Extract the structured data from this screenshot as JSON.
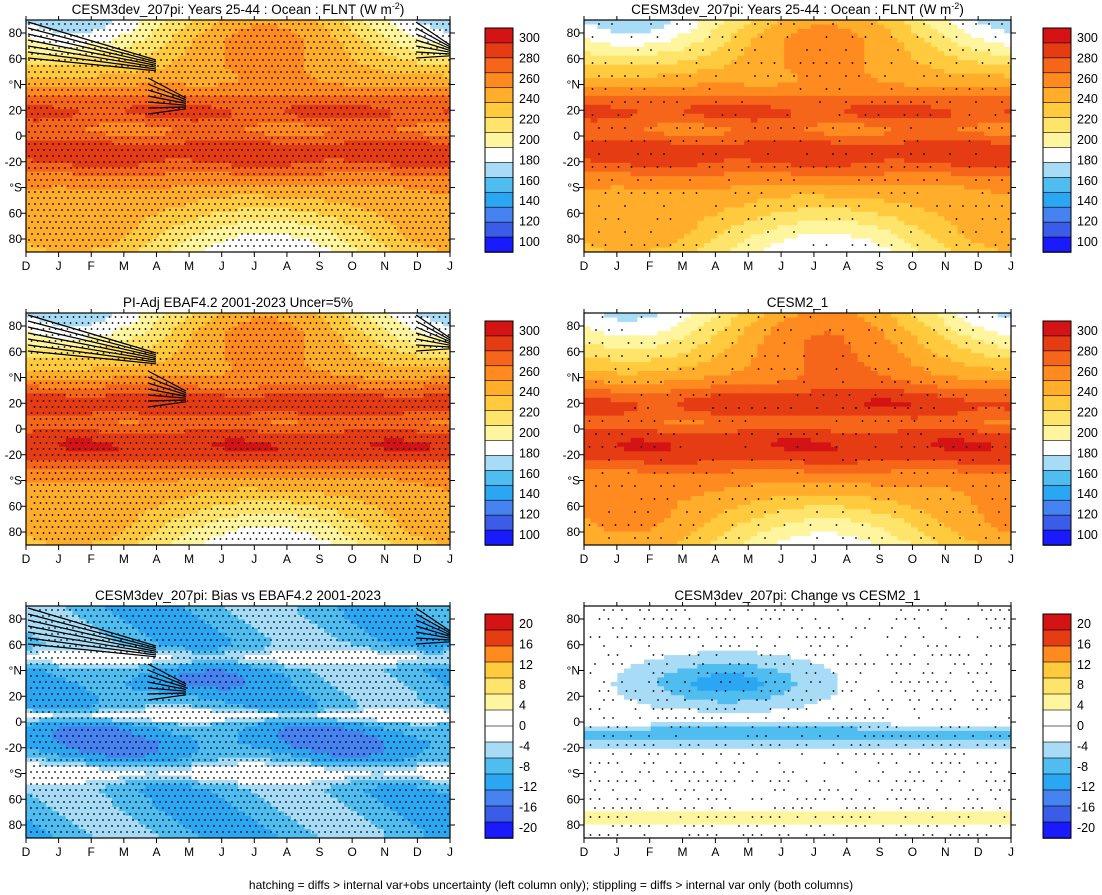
{
  "footnote": "hatching = diffs > internal var+obs uncertainty (left column only); stippling = diffs > internal var only (both columns)",
  "month_ticks": [
    "D",
    "J",
    "F",
    "M",
    "A",
    "M",
    "J",
    "J",
    "A",
    "S",
    "O",
    "N",
    "D",
    "J"
  ],
  "lat_ticks": [
    "80",
    "60",
    "°N",
    "20",
    "0",
    "-20",
    "°S",
    "60",
    "80"
  ],
  "chart_data": [
    {
      "type": "heatmap",
      "title": "CESM3dev_207pi: Years 25-44 : Ocean : FLNT (W m",
      "title_superscript": "-2",
      "title_suffix": ")",
      "field": "flnt_model",
      "hatch": "left",
      "stipple": "dense",
      "colorbar": {
        "levels": [
          100,
          120,
          140,
          160,
          180,
          200,
          220,
          240,
          260,
          280,
          300
        ],
        "labels": [
          "300",
          "280",
          "260",
          "240",
          "220",
          "200",
          "180",
          "160",
          "140",
          "120",
          "100"
        ],
        "range": [
          90,
          310
        ]
      }
    },
    {
      "type": "heatmap",
      "title": "CESM3dev_207pi: Years 25-44 : Ocean : FLNT (W m",
      "title_superscript": "-2",
      "title_suffix": ")",
      "field": "flnt_model",
      "hatch": "none",
      "stipple": "sparse",
      "colorbar": {
        "levels": [
          100,
          120,
          140,
          160,
          180,
          200,
          220,
          240,
          260,
          280,
          300
        ],
        "labels": [
          "300",
          "280",
          "260",
          "240",
          "220",
          "200",
          "180",
          "160",
          "140",
          "120",
          "100"
        ],
        "range": [
          90,
          310
        ]
      }
    },
    {
      "type": "heatmap",
      "title": "PI-Adj EBAF4.2 2001-2023 Uncer=5%",
      "title_superscript": "",
      "title_suffix": "",
      "field": "flnt_obs",
      "hatch": "left",
      "stipple": "dense",
      "colorbar": {
        "levels": [
          100,
          120,
          140,
          160,
          180,
          200,
          220,
          240,
          260,
          280,
          300
        ],
        "labels": [
          "300",
          "280",
          "260",
          "240",
          "220",
          "200",
          "180",
          "160",
          "140",
          "120",
          "100"
        ],
        "range": [
          90,
          310
        ]
      }
    },
    {
      "type": "heatmap",
      "title": "CESM2_1",
      "title_superscript": "",
      "title_suffix": "",
      "field": "flnt_cesm2",
      "hatch": "none",
      "stipple": "sparse",
      "colorbar": {
        "levels": [
          100,
          120,
          140,
          160,
          180,
          200,
          220,
          240,
          260,
          280,
          300
        ],
        "labels": [
          "300",
          "280",
          "260",
          "240",
          "220",
          "200",
          "180",
          "160",
          "140",
          "120",
          "100"
        ],
        "range": [
          90,
          310
        ]
      }
    },
    {
      "type": "heatmap",
      "title": "CESM3dev_207pi: Bias vs EBAF4.2 2001-2023",
      "title_superscript": "",
      "title_suffix": "",
      "field": "bias",
      "hatch": "left",
      "stipple": "dense",
      "colorbar": {
        "levels": [
          -20,
          -16,
          -12,
          -8,
          -4,
          0,
          4,
          8,
          12,
          16,
          20
        ],
        "labels": [
          "20",
          "16",
          "12",
          "8",
          "4",
          "0",
          "-4",
          "-8",
          "-12",
          "-16",
          "-20"
        ],
        "range": [
          -22,
          22
        ]
      }
    },
    {
      "type": "heatmap",
      "title": "CESM3dev_207pi: Change vs CESM2_1",
      "title_superscript": "",
      "title_suffix": "",
      "field": "change",
      "hatch": "none",
      "stipple": "medium",
      "colorbar": {
        "levels": [
          -20,
          -16,
          -12,
          -8,
          -4,
          0,
          4,
          8,
          12,
          16,
          20
        ],
        "labels": [
          "20",
          "16",
          "12",
          "8",
          "4",
          "0",
          "-4",
          "-8",
          "-12",
          "-16",
          "-20"
        ],
        "range": [
          -22,
          22
        ]
      }
    }
  ],
  "colors": {
    "flnt_scale": [
      "#1a1aff",
      "#3a5ce6",
      "#4682f0",
      "#2aa6f2",
      "#50bdf0",
      "#a8dcf6",
      "#ffffff",
      "#fff59e",
      "#ffe46b",
      "#ffca3d",
      "#ffad2b",
      "#ff8a1f",
      "#f5661a",
      "#e63c14",
      "#d41414"
    ],
    "diff_scale": [
      "#1a1aff",
      "#3a5ce6",
      "#4682f0",
      "#2aa6f2",
      "#50bdf0",
      "#a8dcf6",
      "#ffffff",
      "#ffffff",
      "#fff59e",
      "#ffe46b",
      "#ffca3d",
      "#ff8a1f",
      "#e63c14",
      "#d41414"
    ]
  }
}
